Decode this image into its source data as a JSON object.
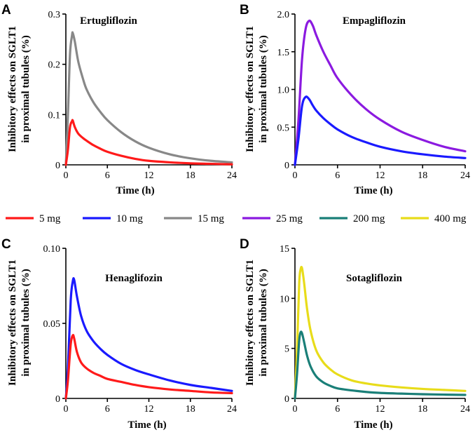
{
  "legend": [
    {
      "label": "5 mg",
      "color": "#ff1a1a"
    },
    {
      "label": "10 mg",
      "color": "#1a1aff"
    },
    {
      "label": "15 mg",
      "color": "#888888"
    },
    {
      "label": "25 mg",
      "color": "#8b1ae0"
    },
    {
      "label": "200 mg",
      "color": "#1a7f78"
    },
    {
      "label": "400 mg",
      "color": "#e8dc1a"
    }
  ],
  "chart_data": [
    {
      "panel": "A",
      "type": "line",
      "title": "Ertugliflozin",
      "xlabel": "Time (h)",
      "ylabel_lines": [
        "Inhibitory effects  on SGLT1",
        "in proximal tubules (%)"
      ],
      "xlim": [
        0,
        24
      ],
      "ylim": [
        0,
        0.3
      ],
      "xticks": [
        "0",
        "6",
        "12",
        "18",
        "24"
      ],
      "xtick_values": [
        0,
        6,
        12,
        18,
        24
      ],
      "yticks": [
        "0",
        "0.1",
        "0.2",
        "0.3"
      ],
      "ytick_values": [
        0,
        0.1,
        0.2,
        0.3
      ],
      "series": [
        {
          "name": "15 mg",
          "color": "#888888",
          "x": [
            0,
            0.3,
            0.6,
            0.9,
            1.0,
            1.3,
            1.8,
            2.5,
            3,
            4,
            5,
            6,
            8,
            10,
            12,
            15,
            18,
            21,
            24
          ],
          "y": [
            0,
            0.1,
            0.22,
            0.258,
            0.262,
            0.245,
            0.205,
            0.17,
            0.15,
            0.124,
            0.105,
            0.089,
            0.065,
            0.047,
            0.034,
            0.021,
            0.013,
            0.008,
            0.005
          ]
        },
        {
          "name": "5 mg",
          "color": "#ff1a1a",
          "x": [
            0,
            0.3,
            0.6,
            0.9,
            1.0,
            1.3,
            1.8,
            2.5,
            3,
            4,
            5,
            6,
            8,
            10,
            12,
            15,
            18,
            21,
            24
          ],
          "y": [
            0,
            0.03,
            0.075,
            0.087,
            0.088,
            0.075,
            0.062,
            0.053,
            0.048,
            0.039,
            0.032,
            0.026,
            0.018,
            0.012,
            0.008,
            0.005,
            0.003,
            0.002,
            0.001
          ]
        }
      ]
    },
    {
      "panel": "B",
      "type": "line",
      "title": "Empagliflozin",
      "xlabel": "Time (h)",
      "ylabel_lines": [
        "Inhibitory effects  on SGLT1",
        "in proximal tubules (%)"
      ],
      "xlim": [
        0,
        24
      ],
      "ylim": [
        0,
        2.0
      ],
      "xticks": [
        "0",
        "6",
        "12",
        "18",
        "24"
      ],
      "xtick_values": [
        0,
        6,
        12,
        18,
        24
      ],
      "yticks": [
        "0",
        "0.5",
        "1.0",
        "1.5",
        "2.0"
      ],
      "ytick_values": [
        0,
        0.5,
        1.0,
        1.5,
        2.0
      ],
      "series": [
        {
          "name": "25 mg",
          "color": "#8b1ae0",
          "x": [
            0,
            0.5,
            1.0,
            1.5,
            2.0,
            2.5,
            3,
            4,
            5,
            6,
            8,
            10,
            12,
            15,
            18,
            21,
            24
          ],
          "y": [
            0,
            0.6,
            1.4,
            1.8,
            1.91,
            1.85,
            1.72,
            1.5,
            1.32,
            1.15,
            0.92,
            0.74,
            0.6,
            0.44,
            0.33,
            0.24,
            0.18
          ]
        },
        {
          "name": "10 mg",
          "color": "#1a1aff",
          "x": [
            0,
            0.5,
            1.0,
            1.5,
            2.0,
            2.5,
            3,
            4,
            5,
            6,
            8,
            10,
            12,
            15,
            18,
            21,
            24
          ],
          "y": [
            0,
            0.35,
            0.78,
            0.9,
            0.87,
            0.79,
            0.72,
            0.62,
            0.54,
            0.47,
            0.37,
            0.3,
            0.24,
            0.18,
            0.14,
            0.11,
            0.09
          ]
        }
      ]
    },
    {
      "panel": "C",
      "type": "line",
      "title": "Henaglifozin",
      "xlabel": "Time (h)",
      "ylabel_lines": [
        "Inhibitory effects  on SGLT1",
        "in proximal tubules (%)"
      ],
      "xlim": [
        0,
        24
      ],
      "ylim": [
        0,
        0.1
      ],
      "xticks": [
        "0",
        "6",
        "12",
        "18",
        "24"
      ],
      "xtick_values": [
        0,
        6,
        12,
        18,
        24
      ],
      "yticks": [
        "0",
        "0.05",
        "0.10"
      ],
      "ytick_values": [
        0,
        0.05,
        0.1
      ],
      "series": [
        {
          "name": "10 mg",
          "color": "#1a1aff",
          "x": [
            0,
            0.3,
            0.7,
            1.0,
            1.2,
            1.6,
            2.2,
            3,
            4,
            5,
            6,
            8,
            10,
            12,
            15,
            18,
            21,
            24
          ],
          "y": [
            0,
            0.02,
            0.065,
            0.078,
            0.079,
            0.068,
            0.055,
            0.045,
            0.038,
            0.033,
            0.029,
            0.023,
            0.019,
            0.016,
            0.012,
            0.009,
            0.007,
            0.005
          ]
        },
        {
          "name": "5 mg",
          "color": "#ff1a1a",
          "x": [
            0,
            0.3,
            0.7,
            1.0,
            1.2,
            1.6,
            2.2,
            3,
            4,
            5,
            6,
            8,
            10,
            12,
            15,
            18,
            21,
            24
          ],
          "y": [
            0,
            0.012,
            0.036,
            0.042,
            0.04,
            0.031,
            0.024,
            0.02,
            0.017,
            0.015,
            0.013,
            0.011,
            0.009,
            0.0075,
            0.006,
            0.005,
            0.004,
            0.0035
          ]
        }
      ]
    },
    {
      "panel": "D",
      "type": "line",
      "title": "Sotagliflozin",
      "xlabel": "Time (h)",
      "ylabel_lines": [
        "Inhibitory effects  on SGLT1",
        "in proximal tubules (%)"
      ],
      "xlim": [
        0,
        24
      ],
      "ylim": [
        0,
        15
      ],
      "xticks": [
        "0",
        "6",
        "12",
        "18",
        "24"
      ],
      "xtick_values": [
        0,
        6,
        12,
        18,
        24
      ],
      "yticks": [
        "0",
        "5",
        "10",
        "15"
      ],
      "ytick_values": [
        0,
        5,
        10,
        15
      ],
      "series": [
        {
          "name": "400 mg",
          "color": "#e8dc1a",
          "x": [
            0,
            0.3,
            0.6,
            0.8,
            1.0,
            1.3,
            1.7,
            2.2,
            3,
            4,
            5,
            6,
            8,
            10,
            12,
            15,
            18,
            21,
            24
          ],
          "y": [
            0,
            5,
            11.5,
            12.9,
            13.0,
            11.5,
            9.0,
            6.8,
            4.8,
            3.6,
            2.9,
            2.4,
            1.8,
            1.5,
            1.3,
            1.1,
            0.95,
            0.85,
            0.75
          ]
        },
        {
          "name": "200 mg",
          "color": "#1a7f78",
          "x": [
            0,
            0.3,
            0.6,
            0.8,
            1.0,
            1.3,
            1.7,
            2.2,
            3,
            4,
            5,
            6,
            8,
            10,
            12,
            15,
            18,
            21,
            24
          ],
          "y": [
            0,
            2.5,
            5.8,
            6.6,
            6.5,
            5.6,
            4.3,
            3.2,
            2.2,
            1.6,
            1.25,
            1.0,
            0.8,
            0.65,
            0.55,
            0.48,
            0.42,
            0.38,
            0.35
          ]
        }
      ]
    }
  ]
}
